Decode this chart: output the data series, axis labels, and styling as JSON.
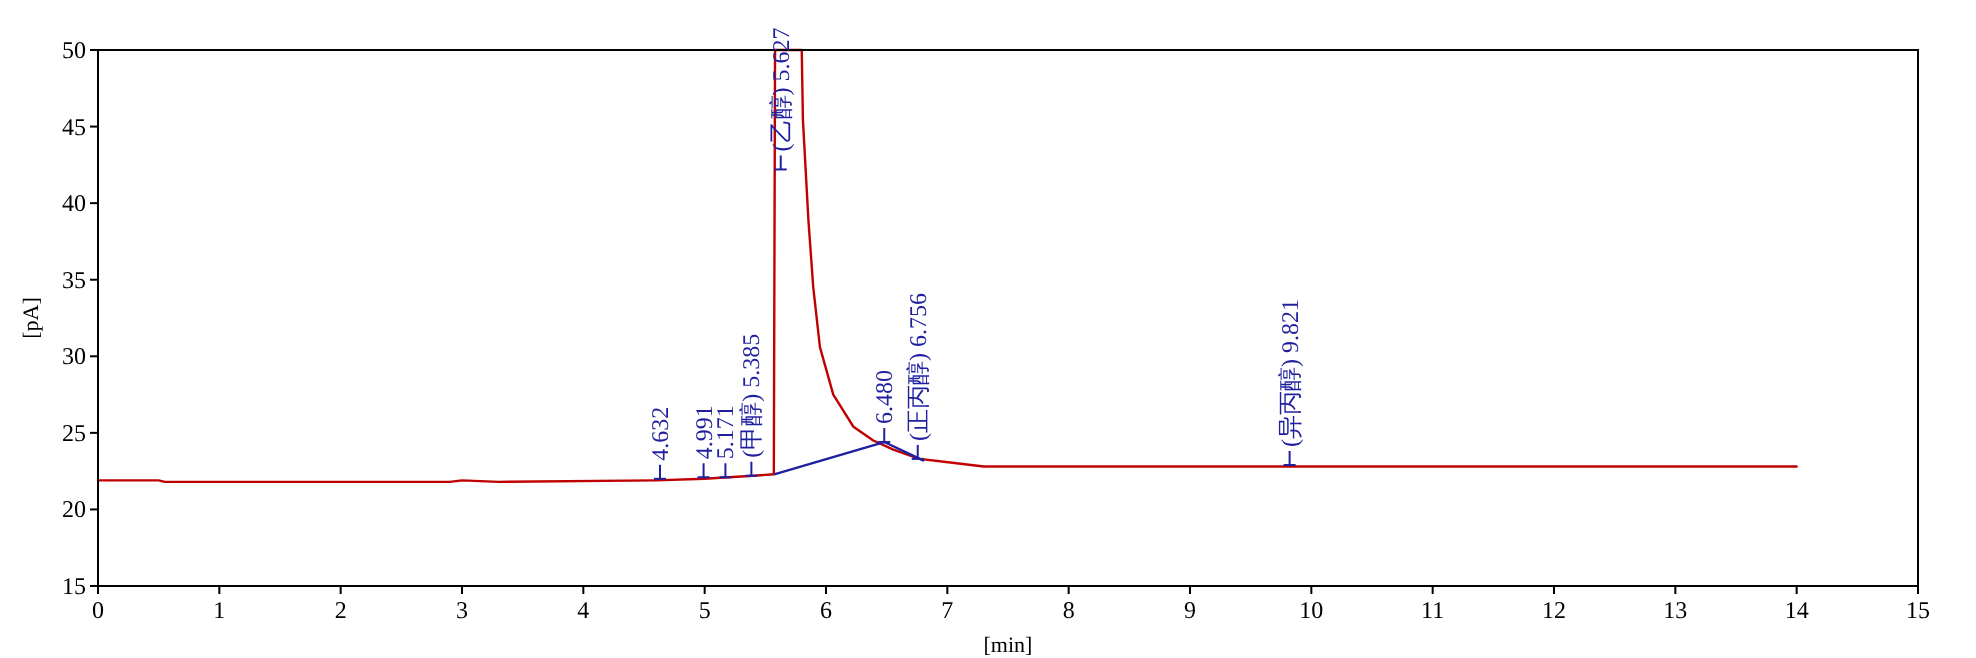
{
  "chart_data": {
    "type": "line",
    "xlabel": "[min]",
    "ylabel": "[pA]",
    "xlim": [
      0,
      15
    ],
    "ylim": [
      15,
      50
    ],
    "xticks": [
      0,
      1,
      2,
      3,
      4,
      5,
      6,
      7,
      8,
      9,
      10,
      11,
      12,
      13,
      14,
      15
    ],
    "yticks": [
      15,
      20,
      25,
      30,
      35,
      40,
      45,
      50
    ],
    "grid": false,
    "marker": "none",
    "line_style": "solid",
    "series": [
      {
        "color": "#c00000",
        "x": [
          0,
          0.5,
          0.55,
          2.9,
          3.0,
          3.3,
          4.6,
          5.0,
          5.2,
          5.4,
          5.57,
          5.58,
          5.8,
          5.81,
          5.855,
          5.895,
          5.95,
          6.06,
          6.226,
          6.39,
          6.555,
          6.77,
          6.99,
          7.3,
          8.0,
          9.0,
          10.0,
          11.0,
          12.0,
          13.0,
          14.0
        ],
        "values": [
          21.9,
          21.9,
          21.8,
          21.8,
          21.9,
          21.8,
          21.9,
          22.0,
          22.1,
          22.2,
          22.3,
          50,
          50,
          45.4,
          38.9,
          34.5,
          30.6,
          27.5,
          25.4,
          24.5,
          23.9,
          23.3,
          23.1,
          22.8,
          22.8,
          22.8,
          22.8,
          22.8,
          22.8,
          22.8,
          22.8
        ]
      },
      {
        "color": "#1f1f9f",
        "x": [
          5.58,
          6.48,
          6.8
        ],
        "values": [
          22.3,
          24.4,
          23.2
        ]
      }
    ],
    "annotations": [
      {
        "text": "4.632",
        "x": 4.632,
        "y": 22.0
      },
      {
        "text": "4.991",
        "x": 4.991,
        "y": 22.1
      },
      {
        "text": "5.171",
        "x": 5.171,
        "y": 22.1
      },
      {
        "text": "(甲醇) 5.385",
        "x": 5.385,
        "y": 22.2
      },
      {
        "text": "(乙醇) 5.627",
        "x": 5.627,
        "y": 42.2
      },
      {
        "text": "6.480",
        "x": 6.48,
        "y": 24.4
      },
      {
        "text": "(正丙醇) 6.756",
        "x": 6.756,
        "y": 23.3
      },
      {
        "text": "(异丙醇) 9.821",
        "x": 9.821,
        "y": 22.9
      }
    ]
  }
}
